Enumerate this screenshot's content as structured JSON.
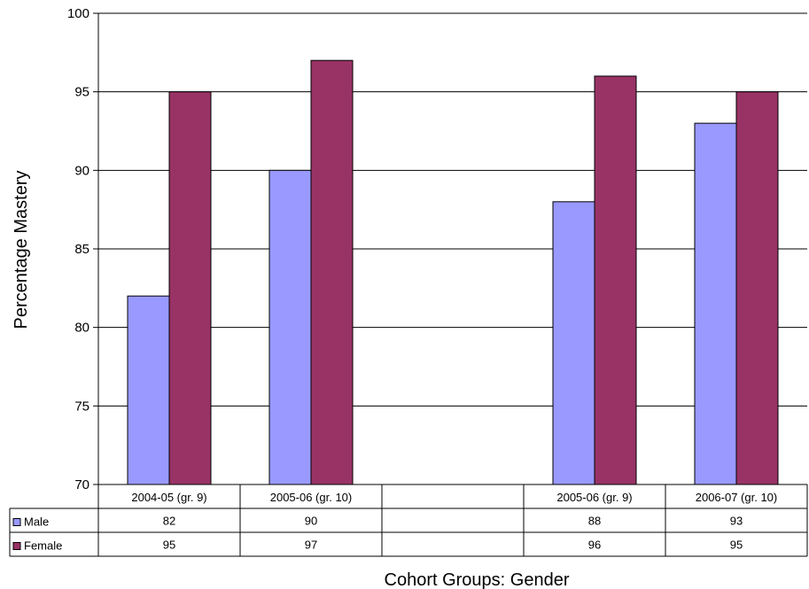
{
  "chart_data": {
    "type": "bar",
    "title": "",
    "xlabel": "Cohort Groups: Gender",
    "ylabel": "Percentage Mastery",
    "ylim": [
      70,
      100
    ],
    "yticks": [
      70,
      75,
      80,
      85,
      90,
      95,
      100
    ],
    "grid": true,
    "legend": "data-table",
    "categories": [
      "2004-05 (gr. 9)",
      "2005-06 (gr. 10)",
      "",
      "2005-06 (gr. 9)",
      "2006-07 (gr. 10)"
    ],
    "series": [
      {
        "name": "Male",
        "color": "#9999ff",
        "values": [
          82,
          90,
          null,
          88,
          93
        ],
        "labels": [
          "82",
          "90",
          "",
          "88",
          "93"
        ]
      },
      {
        "name": "Female",
        "color": "#993366",
        "values": [
          95,
          97,
          null,
          96,
          95
        ],
        "labels": [
          "95",
          "97",
          "",
          "96",
          "95"
        ]
      }
    ]
  }
}
